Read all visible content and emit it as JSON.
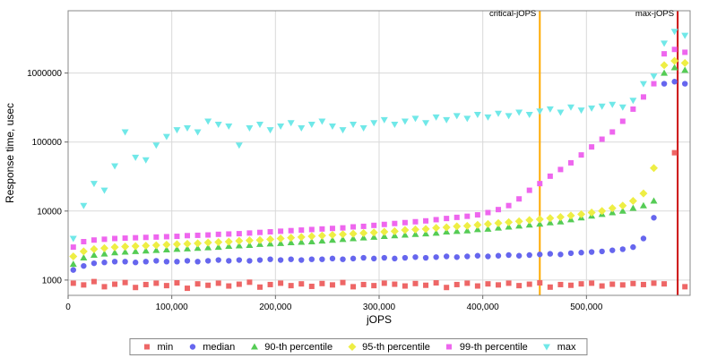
{
  "chart_data": {
    "type": "scatter",
    "title": "",
    "xlabel": "jOPS",
    "ylabel": "Response time, usec",
    "grid": true,
    "legend_position": "bottom",
    "x_axis": {
      "min": 0,
      "max": 600000,
      "ticks": [
        {
          "v": 0,
          "label": "0"
        },
        {
          "v": 100000,
          "label": "100,000"
        },
        {
          "v": 200000,
          "label": "200,000"
        },
        {
          "v": 300000,
          "label": "300,000"
        },
        {
          "v": 400000,
          "label": "400,000"
        },
        {
          "v": 500000,
          "label": "500,000"
        }
      ]
    },
    "y_axis": {
      "scale": "log",
      "min": 600,
      "max": 8000000,
      "ticks": [
        {
          "v": 1000,
          "label": "1000"
        },
        {
          "v": 10000,
          "label": "10000"
        },
        {
          "v": 100000,
          "label": "100000"
        },
        {
          "v": 1000000,
          "label": "1000000"
        }
      ]
    },
    "annotations": [
      {
        "label": "critical-jOPS",
        "x": 455000,
        "color": "#ffaa00"
      },
      {
        "label": "max-jOPS",
        "x": 588000,
        "color": "#cc1111"
      }
    ],
    "x": [
      5000,
      15000,
      25000,
      35000,
      45000,
      55000,
      65000,
      75000,
      85000,
      95000,
      105000,
      115000,
      125000,
      135000,
      145000,
      155000,
      165000,
      175000,
      185000,
      195000,
      205000,
      215000,
      225000,
      235000,
      245000,
      255000,
      265000,
      275000,
      285000,
      295000,
      305000,
      315000,
      325000,
      335000,
      345000,
      355000,
      365000,
      375000,
      385000,
      395000,
      405000,
      415000,
      425000,
      435000,
      445000,
      455000,
      465000,
      475000,
      485000,
      495000,
      505000,
      515000,
      525000,
      535000,
      545000,
      555000,
      565000,
      575000,
      585000,
      595000
    ],
    "series": [
      {
        "name": "min",
        "color": "#ee6666",
        "marker": "square",
        "values": [
          900,
          850,
          950,
          800,
          870,
          920,
          780,
          860,
          900,
          830,
          910,
          760,
          880,
          840,
          900,
          820,
          870,
          930,
          790,
          860,
          900,
          830,
          880,
          810,
          890,
          850,
          920,
          800,
          860,
          830,
          900,
          870,
          820,
          890,
          840,
          910,
          780,
          860,
          900,
          820,
          880,
          850,
          900,
          830,
          870,
          910,
          790,
          860,
          840,
          880,
          900,
          820,
          870,
          850,
          890,
          860,
          900,
          880,
          70000,
          800
        ]
      },
      {
        "name": "median",
        "color": "#6666ee",
        "marker": "circle",
        "values": [
          1400,
          1600,
          1750,
          1800,
          1850,
          1850,
          1800,
          1850,
          1900,
          1850,
          1850,
          1900,
          1850,
          1900,
          1950,
          1900,
          1950,
          1900,
          1950,
          2000,
          1950,
          2000,
          1950,
          2000,
          2000,
          2050,
          2000,
          2050,
          2100,
          2050,
          2100,
          2050,
          2100,
          2150,
          2100,
          2150,
          2200,
          2150,
          2200,
          2250,
          2200,
          2250,
          2300,
          2250,
          2300,
          2350,
          2400,
          2350,
          2450,
          2500,
          2550,
          2600,
          2700,
          2800,
          3000,
          4000,
          8000,
          700000,
          750000,
          700000
        ]
      },
      {
        "name": "90-th percentile",
        "color": "#55cc55",
        "marker": "triangle-up",
        "values": [
          1700,
          2100,
          2300,
          2400,
          2500,
          2550,
          2600,
          2650,
          2700,
          2750,
          2800,
          2850,
          2900,
          2950,
          3000,
          3100,
          3150,
          3200,
          3300,
          3350,
          3400,
          3500,
          3550,
          3600,
          3700,
          3800,
          3900,
          4000,
          4100,
          4200,
          4300,
          4400,
          4500,
          4600,
          4700,
          4800,
          5000,
          5100,
          5200,
          5400,
          5500,
          5700,
          5900,
          6100,
          6300,
          6500,
          6800,
          7000,
          7500,
          8000,
          8500,
          9000,
          9500,
          10000,
          11000,
          12000,
          14000,
          1000000,
          1200000,
          1100000
        ]
      },
      {
        "name": "95-th percentile",
        "color": "#eeee44",
        "marker": "diamond",
        "values": [
          2200,
          2600,
          2800,
          2900,
          3000,
          3050,
          3100,
          3150,
          3200,
          3250,
          3300,
          3350,
          3400,
          3500,
          3550,
          3600,
          3700,
          3750,
          3800,
          3900,
          4000,
          4100,
          4200,
          4300,
          4400,
          4500,
          4600,
          4700,
          4800,
          4900,
          5000,
          5100,
          5300,
          5400,
          5500,
          5700,
          5800,
          6000,
          6100,
          6300,
          6500,
          6700,
          6900,
          7100,
          7400,
          7600,
          7900,
          8200,
          8600,
          9000,
          9500,
          10000,
          11000,
          12000,
          14000,
          18000,
          42000,
          1300000,
          1500000,
          1400000
        ]
      },
      {
        "name": "99-th percentile",
        "color": "#ee66ee",
        "marker": "square",
        "values": [
          3000,
          3600,
          3800,
          3900,
          4000,
          4050,
          4100,
          4150,
          4200,
          4250,
          4300,
          4400,
          4450,
          4500,
          4600,
          4650,
          4700,
          4800,
          4900,
          5000,
          5100,
          5200,
          5300,
          5400,
          5500,
          5600,
          5700,
          5900,
          6000,
          6200,
          6400,
          6600,
          6800,
          7000,
          7200,
          7500,
          7800,
          8100,
          8400,
          8800,
          9500,
          10500,
          12000,
          15000,
          20000,
          25000,
          32000,
          40000,
          50000,
          65000,
          85000,
          110000,
          140000,
          200000,
          300000,
          450000,
          700000,
          1900000,
          2200000,
          2000000
        ]
      },
      {
        "name": "max",
        "color": "#70e8e8",
        "marker": "triangle-down",
        "values": [
          4000,
          12000,
          25000,
          20000,
          45000,
          140000,
          60000,
          55000,
          90000,
          120000,
          150000,
          160000,
          140000,
          200000,
          180000,
          170000,
          90000,
          160000,
          180000,
          150000,
          170000,
          190000,
          160000,
          180000,
          200000,
          170000,
          150000,
          180000,
          160000,
          190000,
          210000,
          180000,
          200000,
          220000,
          190000,
          230000,
          210000,
          240000,
          220000,
          250000,
          230000,
          260000,
          240000,
          270000,
          250000,
          280000,
          300000,
          270000,
          320000,
          290000,
          310000,
          330000,
          350000,
          320000,
          400000,
          700000,
          900000,
          2700000,
          4000000,
          3500000
        ]
      }
    ]
  }
}
